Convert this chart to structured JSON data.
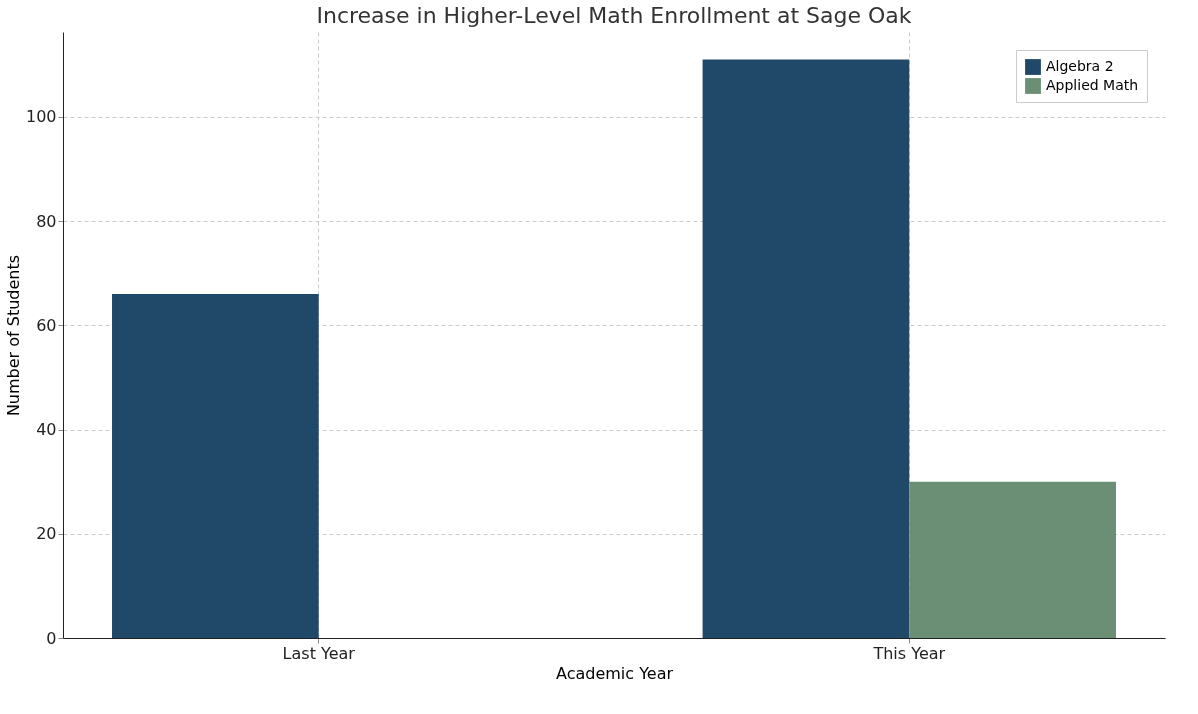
{
  "chart_data": {
    "type": "bar",
    "title": "Increase in Higher-Level Math Enrollment at Sage Oak",
    "xlabel": "Academic Year",
    "ylabel": "Number of Students",
    "categories": [
      "Last Year",
      "This Year"
    ],
    "series": [
      {
        "name": "Algebra 2",
        "color": "#1f4869",
        "values": [
          66,
          111
        ]
      },
      {
        "name": "Applied Math",
        "color": "#6b8f74",
        "values": [
          null,
          30
        ]
      }
    ],
    "ylim": [
      0,
      116.3
    ],
    "yticks": [
      0,
      20,
      40,
      60,
      80,
      100
    ],
    "grid": true,
    "legend": "top right"
  }
}
